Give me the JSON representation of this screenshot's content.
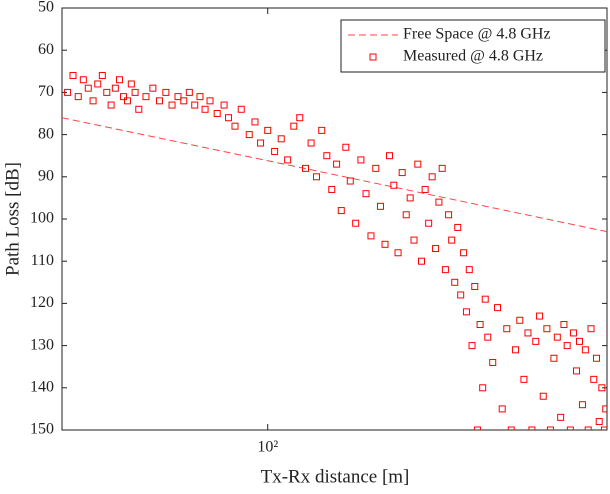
{
  "chart_data": {
    "type": "scatter",
    "xlabel": "Tx-Rx distance [m]",
    "ylabel": "Path Loss [dB]",
    "xscale": "log",
    "xlim": [
      31,
      690
    ],
    "xticks": [
      {
        "value": 100,
        "label": "10²"
      }
    ],
    "ylim": [
      50,
      150
    ],
    "y_reversed": true,
    "yticks": [
      50,
      60,
      70,
      80,
      90,
      100,
      110,
      120,
      130,
      140,
      150
    ],
    "legend": "upper right",
    "series": [
      {
        "name": "Free Space @ 4.8 GHz",
        "type": "line",
        "style": "dashed",
        "color": "#ff4444",
        "x": [
          31,
          690
        ],
        "values": [
          76,
          103
        ]
      },
      {
        "name": "Measured @ 4.8 GHz",
        "type": "scatter",
        "marker": "square",
        "color": "#ff0000",
        "x": [
          32,
          33,
          34,
          35,
          36,
          37,
          38,
          39,
          40,
          41,
          42,
          43,
          44,
          45,
          46,
          47,
          48,
          50,
          52,
          54,
          56,
          58,
          60,
          62,
          64,
          66,
          68,
          70,
          72,
          75,
          78,
          80,
          83,
          86,
          90,
          93,
          96,
          100,
          104,
          108,
          112,
          116,
          120,
          124,
          128,
          132,
          136,
          140,
          144,
          148,
          152,
          156,
          160,
          165,
          170,
          175,
          180,
          185,
          190,
          195,
          200,
          205,
          210,
          215,
          220,
          225,
          230,
          235,
          240,
          245,
          250,
          255,
          260,
          265,
          270,
          275,
          280,
          285,
          290,
          295,
          300,
          305,
          310,
          315,
          320,
          325,
          330,
          335,
          340,
          345,
          350,
          360,
          370,
          380,
          390,
          400,
          410,
          420,
          430,
          440,
          450,
          460,
          470,
          480,
          490,
          500,
          510,
          520,
          530,
          540,
          550,
          560,
          570,
          580,
          590,
          600,
          610,
          620,
          630,
          640,
          650,
          660,
          670,
          680,
          685
        ],
        "values": [
          70,
          66,
          71,
          67,
          69,
          72,
          68,
          66,
          70,
          73,
          69,
          67,
          71,
          72,
          68,
          70,
          74,
          71,
          69,
          72,
          70,
          73,
          71,
          72,
          70,
          73,
          71,
          74,
          72,
          75,
          73,
          76,
          78,
          74,
          80,
          77,
          82,
          79,
          84,
          81,
          86,
          78,
          76,
          88,
          82,
          90,
          79,
          85,
          93,
          87,
          98,
          83,
          91,
          101,
          86,
          94,
          104,
          88,
          97,
          106,
          85,
          92,
          108,
          89,
          99,
          95,
          105,
          87,
          110,
          93,
          101,
          90,
          107,
          96,
          88,
          112,
          99,
          105,
          115,
          102,
          118,
          108,
          122,
          112,
          130,
          116,
          150,
          125,
          140,
          119,
          128,
          134,
          121,
          145,
          126,
          150,
          131,
          124,
          138,
          127,
          150,
          129,
          123,
          142,
          126,
          150,
          133,
          128,
          147,
          125,
          130,
          150,
          127,
          136,
          129,
          144,
          131,
          150,
          126,
          138,
          133,
          148,
          140,
          150,
          145
        ]
      }
    ]
  }
}
